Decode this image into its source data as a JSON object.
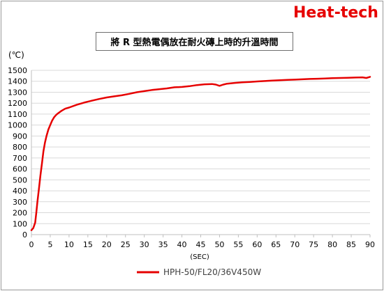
{
  "brand": "Heat-tech",
  "chart_data": {
    "type": "line",
    "title": "將 R 型熱電偶放在耐火磚上時的升溫時間",
    "xlabel": "(SEC)",
    "ylabel": "(℃)",
    "xlim": [
      0,
      90
    ],
    "ylim": [
      0,
      1500
    ],
    "xticks": [
      0,
      5,
      10,
      15,
      20,
      25,
      30,
      35,
      40,
      45,
      50,
      55,
      60,
      65,
      70,
      75,
      80,
      85,
      90
    ],
    "yticks": [
      0,
      100,
      200,
      300,
      400,
      500,
      600,
      700,
      800,
      900,
      1000,
      1100,
      1200,
      1300,
      1400,
      1500
    ],
    "grid": "horizontal",
    "legend_position": "bottom",
    "series": [
      {
        "name": "HPH-50/FL20/36V450W",
        "color": "#e60000",
        "x": [
          0,
          0.5,
          1,
          1.3,
          1.6,
          2,
          2.4,
          2.8,
          3.2,
          3.6,
          4,
          4.5,
          5,
          5.5,
          6,
          6.5,
          7,
          8,
          9,
          10,
          12,
          14,
          16,
          18,
          20,
          22,
          24,
          26,
          28,
          30,
          32,
          34,
          36,
          38,
          40,
          42,
          44,
          46,
          48,
          49,
          50,
          51,
          52,
          54,
          56,
          58,
          60,
          62,
          64,
          66,
          68,
          70,
          72,
          74,
          76,
          78,
          80,
          82,
          84,
          86,
          88,
          89,
          90
        ],
        "y": [
          40,
          60,
          110,
          200,
          300,
          420,
          540,
          650,
          760,
          840,
          900,
          960,
          1000,
          1040,
          1070,
          1090,
          1105,
          1130,
          1150,
          1160,
          1185,
          1205,
          1222,
          1238,
          1252,
          1262,
          1272,
          1285,
          1300,
          1310,
          1320,
          1328,
          1335,
          1345,
          1348,
          1355,
          1365,
          1372,
          1375,
          1370,
          1358,
          1370,
          1378,
          1385,
          1390,
          1394,
          1398,
          1402,
          1406,
          1410,
          1412,
          1415,
          1418,
          1421,
          1423,
          1425,
          1428,
          1430,
          1432,
          1434,
          1436,
          1430,
          1440
        ]
      }
    ]
  }
}
